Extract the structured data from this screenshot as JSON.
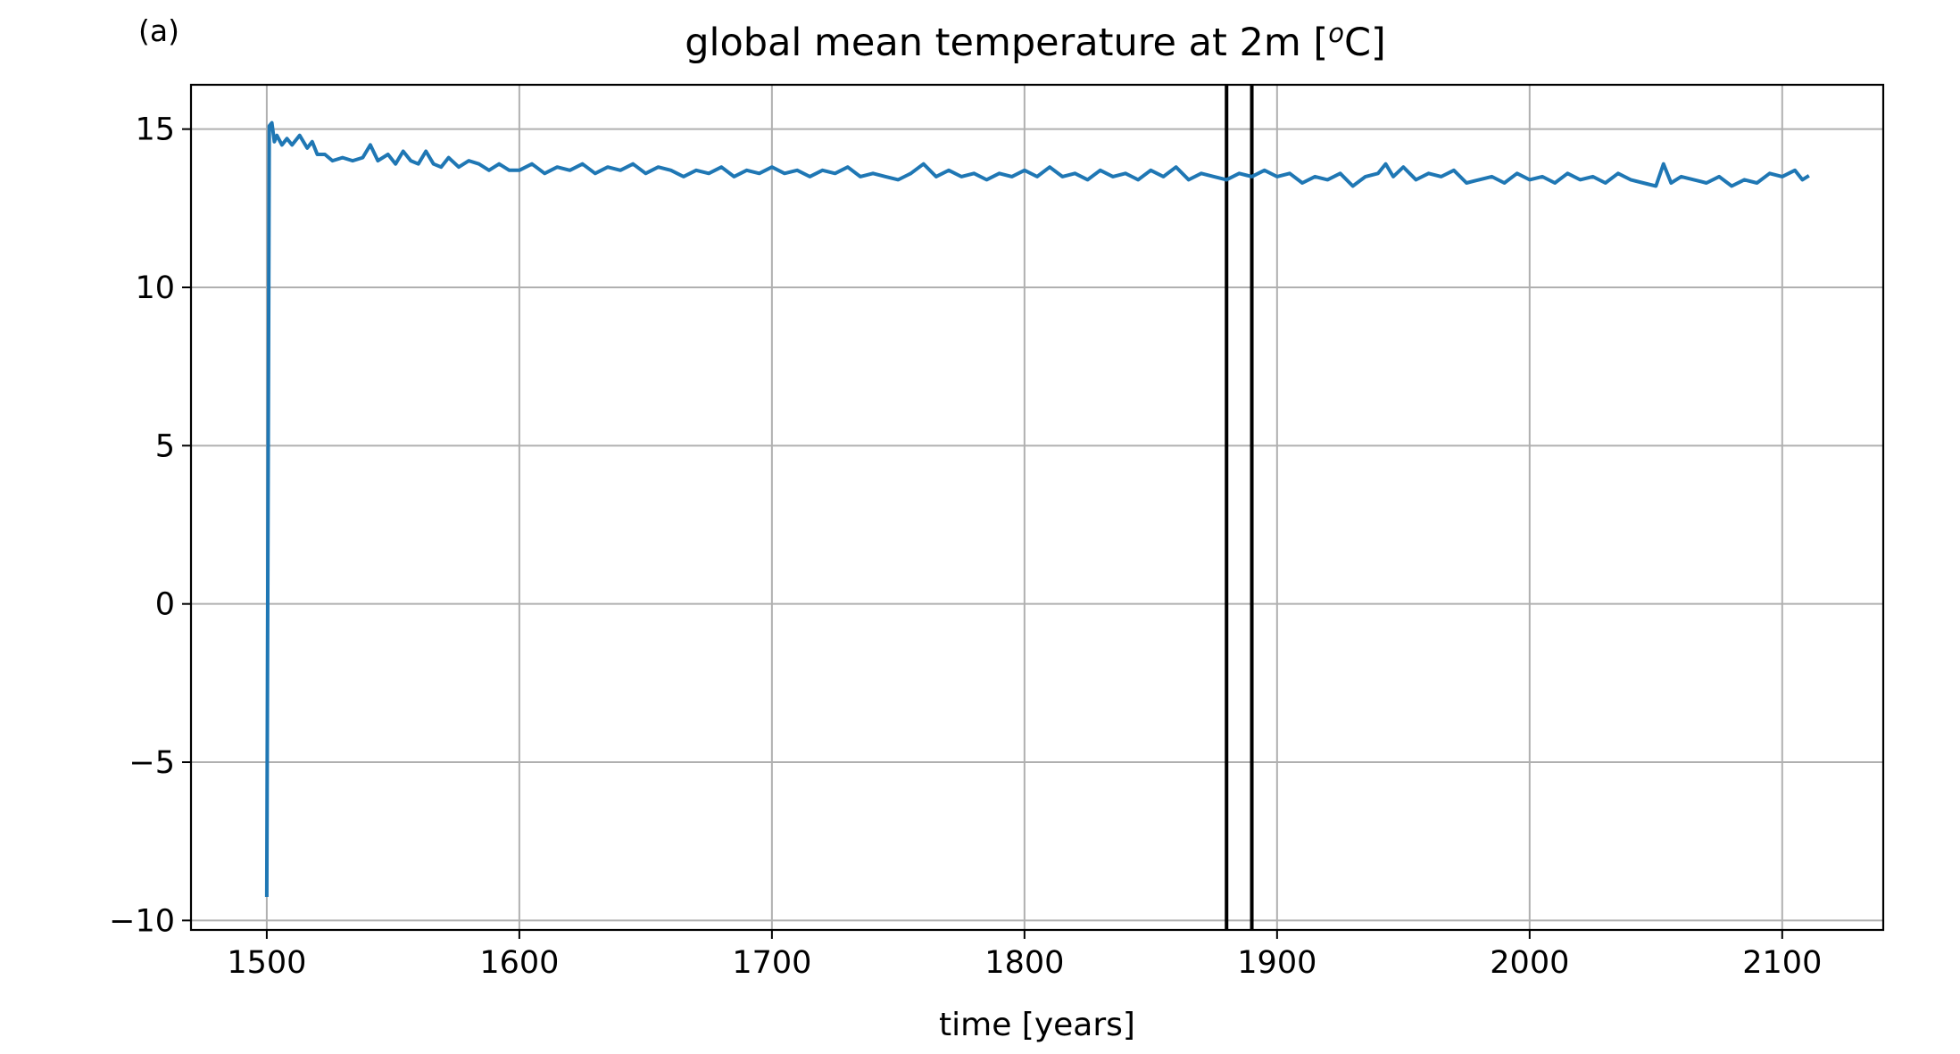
{
  "panel_label": "(a)",
  "chart_data": {
    "type": "line",
    "title_main": "global mean temperature at 2m [",
    "title_superscript": "o",
    "title_end": "C]",
    "xlabel": "time [years]",
    "ylabel": "",
    "xlim": [
      1470,
      2140
    ],
    "ylim": [
      -10.3,
      16.4
    ],
    "xticks": [
      1500,
      1600,
      1700,
      1800,
      1900,
      2000,
      2100
    ],
    "xtick_labels": [
      "1500",
      "1600",
      "1700",
      "1800",
      "1900",
      "2000",
      "2100"
    ],
    "yticks": [
      -10,
      -5,
      0,
      5,
      10,
      15
    ],
    "ytick_labels": [
      "−10",
      "−5",
      "0",
      "5",
      "10",
      "15"
    ],
    "grid": true,
    "series_color": "#1f77b4",
    "vlines": [
      {
        "x": 1880,
        "color": "#000000"
      },
      {
        "x": 1890,
        "color": "#000000"
      }
    ],
    "series": [
      {
        "x": [
          1500,
          1501,
          1502,
          1503,
          1504,
          1506,
          1508,
          1510,
          1513,
          1516,
          1518,
          1520,
          1523,
          1526,
          1530,
          1534,
          1538,
          1541,
          1544,
          1548,
          1551,
          1554,
          1557,
          1560,
          1563,
          1566,
          1569,
          1572,
          1576,
          1580,
          1584,
          1588,
          1592,
          1596,
          1600,
          1605,
          1610,
          1615,
          1620,
          1625,
          1630,
          1635,
          1640,
          1645,
          1650,
          1655,
          1660,
          1665,
          1670,
          1675,
          1680,
          1685,
          1690,
          1695,
          1700,
          1705,
          1710,
          1715,
          1720,
          1725,
          1730,
          1735,
          1740,
          1745,
          1750,
          1755,
          1760,
          1765,
          1770,
          1775,
          1780,
          1785,
          1790,
          1795,
          1800,
          1805,
          1810,
          1815,
          1820,
          1825,
          1830,
          1835,
          1840,
          1845,
          1850,
          1855,
          1860,
          1865,
          1870,
          1875,
          1880,
          1885,
          1890,
          1895,
          1900,
          1905,
          1910,
          1915,
          1920,
          1925,
          1930,
          1935,
          1940,
          1943,
          1946,
          1950,
          1955,
          1960,
          1965,
          1970,
          1975,
          1980,
          1985,
          1990,
          1995,
          2000,
          2005,
          2010,
          2015,
          2020,
          2025,
          2030,
          2035,
          2040,
          2045,
          2050,
          2053,
          2056,
          2060,
          2065,
          2070,
          2075,
          2080,
          2085,
          2090,
          2095,
          2100,
          2105,
          2108,
          2110
        ],
        "y": [
          -9.2,
          15.1,
          15.2,
          14.6,
          14.8,
          14.5,
          14.7,
          14.5,
          14.8,
          14.4,
          14.6,
          14.2,
          14.2,
          14.0,
          14.1,
          14.0,
          14.1,
          14.5,
          14.0,
          14.2,
          13.9,
          14.3,
          14.0,
          13.9,
          14.3,
          13.9,
          13.8,
          14.1,
          13.8,
          14.0,
          13.9,
          13.7,
          13.9,
          13.7,
          13.7,
          13.9,
          13.6,
          13.8,
          13.7,
          13.9,
          13.6,
          13.8,
          13.7,
          13.9,
          13.6,
          13.8,
          13.7,
          13.5,
          13.7,
          13.6,
          13.8,
          13.5,
          13.7,
          13.6,
          13.8,
          13.6,
          13.7,
          13.5,
          13.7,
          13.6,
          13.8,
          13.5,
          13.6,
          13.5,
          13.4,
          13.6,
          13.9,
          13.5,
          13.7,
          13.5,
          13.6,
          13.4,
          13.6,
          13.5,
          13.7,
          13.5,
          13.8,
          13.5,
          13.6,
          13.4,
          13.7,
          13.5,
          13.6,
          13.4,
          13.7,
          13.5,
          13.8,
          13.4,
          13.6,
          13.5,
          13.4,
          13.6,
          13.5,
          13.7,
          13.5,
          13.6,
          13.3,
          13.5,
          13.4,
          13.6,
          13.2,
          13.5,
          13.6,
          13.9,
          13.5,
          13.8,
          13.4,
          13.6,
          13.5,
          13.7,
          13.3,
          13.4,
          13.5,
          13.3,
          13.6,
          13.4,
          13.5,
          13.3,
          13.6,
          13.4,
          13.5,
          13.3,
          13.6,
          13.4,
          13.3,
          13.2,
          13.9,
          13.3,
          13.5,
          13.4,
          13.3,
          13.5,
          13.2,
          13.4,
          13.3,
          13.6,
          13.5,
          13.7,
          13.4,
          13.5
        ]
      }
    ]
  }
}
